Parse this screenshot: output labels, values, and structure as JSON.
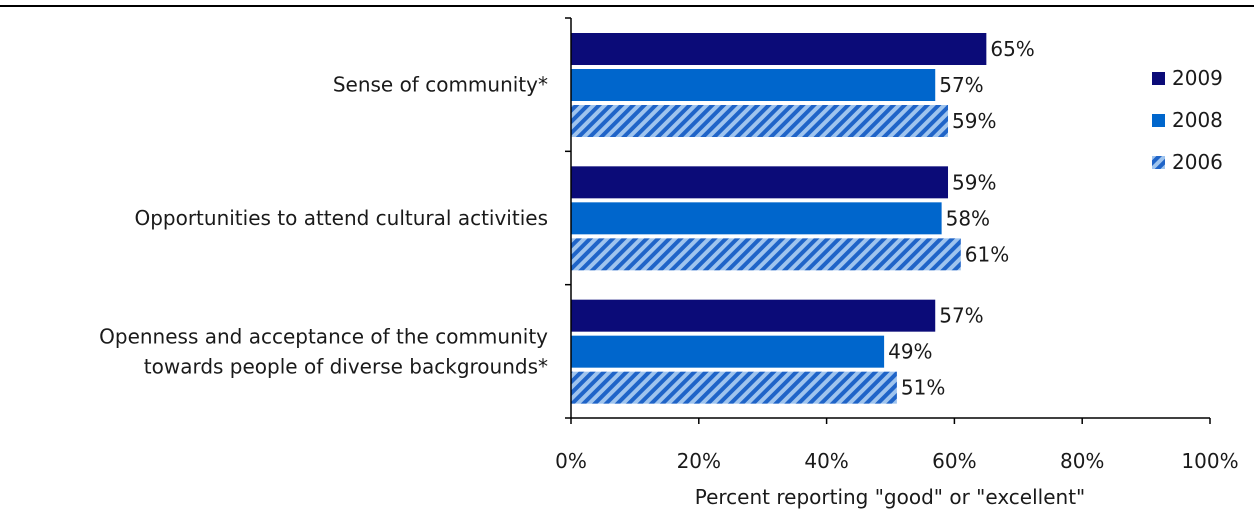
{
  "chart_data": {
    "type": "bar",
    "orientation": "horizontal",
    "categories": [
      [
        "Sense of community*"
      ],
      [
        "Opportunities to attend cultural activities"
      ],
      [
        "Openness and acceptance of the community",
        "towards people of diverse backgrounds*"
      ]
    ],
    "series": [
      {
        "name": "2009",
        "values": [
          65,
          59,
          57
        ],
        "color": "#0b0b78",
        "pattern": "solid"
      },
      {
        "name": "2008",
        "values": [
          57,
          58,
          49
        ],
        "color": "#0066cc",
        "pattern": "solid"
      },
      {
        "name": "2006",
        "values": [
          59,
          61,
          51
        ],
        "color": "#1f64c8",
        "pattern": "diagonal-stripes"
      }
    ],
    "xlabel": "Percent reporting \"good\" or \"excellent\"",
    "ylabel": "",
    "xlim": [
      0,
      100
    ],
    "x_ticks": [
      0,
      20,
      40,
      60,
      80,
      100
    ],
    "tick_format": "{v}%",
    "value_format": "{v}%",
    "grid": false,
    "legend_position": "right"
  }
}
